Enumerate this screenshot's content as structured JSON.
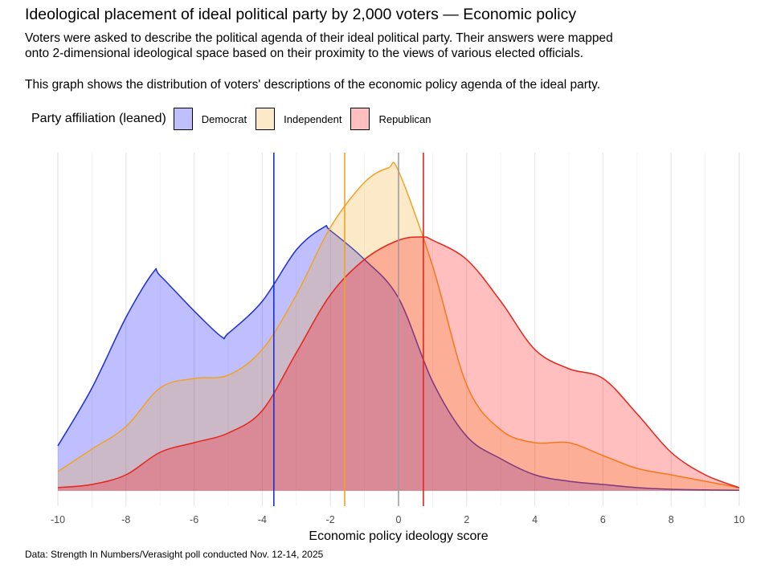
{
  "title": "Ideological placement of ideal political party by 2,000 voters — Economic policy",
  "subtitle_lines": [
    "Voters were asked to describe the political agenda of their ideal political party. Their answers were mapped",
    "onto 2-dimensional ideological space based on their proximity to the views of various elected officials."
  ],
  "subtitle_note": "This graph shows the distribution of voters' descriptions of the economic policy agenda of the ideal party.",
  "caption": "Data: Strength In Numbers/Verasight poll conducted Nov. 12-14, 2025",
  "chart_data": {
    "type": "area",
    "subtype": "density",
    "xlabel": "Economic policy ideology score",
    "ylabel": "",
    "xlim": [
      -10,
      10
    ],
    "xticks": [
      "-10",
      "-8",
      "-6",
      "-4",
      "-2",
      "0",
      "2",
      "4",
      "6",
      "8",
      "10"
    ],
    "grid": true,
    "y_axis_labels_shown": false,
    "legend": {
      "title": "Party affiliation (leaned)",
      "placement": "top-left"
    },
    "reference_line": {
      "x": 0,
      "color": "#9a9a9a"
    },
    "series": [
      {
        "name": "Democrat",
        "fill": "#0000ff",
        "line": "#1c2fd0",
        "mean": -3.66,
        "points": [
          [
            -10,
            0.014
          ],
          [
            -9,
            0.032
          ],
          [
            -8,
            0.054
          ],
          [
            -7.2,
            0.068
          ],
          [
            -7,
            0.067
          ],
          [
            -6,
            0.056
          ],
          [
            -5.2,
            0.048
          ],
          [
            -5,
            0.049
          ],
          [
            -4,
            0.059
          ],
          [
            -3,
            0.075
          ],
          [
            -2.2,
            0.082
          ],
          [
            -2,
            0.081
          ],
          [
            -1,
            0.072
          ],
          [
            0,
            0.06
          ],
          [
            1,
            0.034
          ],
          [
            2,
            0.017
          ],
          [
            3,
            0.01
          ],
          [
            4,
            0.005
          ],
          [
            5,
            0.003
          ],
          [
            6,
            0.002
          ],
          [
            7,
            0.001
          ],
          [
            8,
            0.0005
          ],
          [
            9,
            0.0003
          ],
          [
            10,
            0.0002
          ]
        ]
      },
      {
        "name": "Independent",
        "fill": "#f5a623",
        "line": "#f0a226",
        "mean": -1.58,
        "points": [
          [
            -10,
            0.006
          ],
          [
            -9,
            0.013
          ],
          [
            -8,
            0.02
          ],
          [
            -7,
            0.032
          ],
          [
            -6,
            0.035
          ],
          [
            -5,
            0.036
          ],
          [
            -4,
            0.044
          ],
          [
            -3,
            0.061
          ],
          [
            -2,
            0.082
          ],
          [
            -1,
            0.096
          ],
          [
            -0.3,
            0.1005
          ],
          [
            0,
            0.0995
          ],
          [
            1,
            0.07
          ],
          [
            2,
            0.033
          ],
          [
            3,
            0.019
          ],
          [
            4,
            0.015
          ],
          [
            5,
            0.015
          ],
          [
            6,
            0.011
          ],
          [
            7,
            0.007
          ],
          [
            8,
            0.005
          ],
          [
            9,
            0.003
          ],
          [
            10,
            0.001
          ]
        ]
      },
      {
        "name": "Republican",
        "fill": "#ff0000",
        "line": "#e3261c",
        "mean": 0.73,
        "points": [
          [
            -10,
            0.001
          ],
          [
            -9,
            0.002
          ],
          [
            -8,
            0.005
          ],
          [
            -7,
            0.012
          ],
          [
            -6,
            0.015
          ],
          [
            -5,
            0.018
          ],
          [
            -4,
            0.025
          ],
          [
            -3,
            0.043
          ],
          [
            -2,
            0.061
          ],
          [
            -1,
            0.072
          ],
          [
            0,
            0.078
          ],
          [
            0.7,
            0.079
          ],
          [
            1,
            0.078
          ],
          [
            2,
            0.072
          ],
          [
            3,
            0.059
          ],
          [
            4,
            0.044
          ],
          [
            5,
            0.038
          ],
          [
            6,
            0.035
          ],
          [
            7,
            0.024
          ],
          [
            8,
            0.012
          ],
          [
            9,
            0.005
          ],
          [
            10,
            0.001
          ]
        ]
      }
    ]
  }
}
